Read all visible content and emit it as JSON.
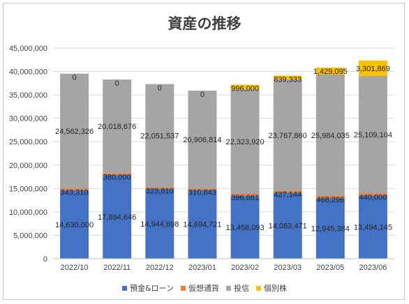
{
  "chart_data": {
    "type": "bar",
    "stacked": true,
    "title": "資産の推移",
    "xlabel": "",
    "ylabel": "",
    "ylim": [
      0,
      45000000
    ],
    "yticks": [
      0,
      5000000,
      10000000,
      15000000,
      20000000,
      25000000,
      30000000,
      35000000,
      40000000,
      45000000
    ],
    "ytick_labels": [
      "0",
      "5,000,000",
      "10,000,000",
      "15,000,000",
      "20,000,000",
      "25,000,000",
      "30,000,000",
      "35,000,000",
      "40,000,000",
      "45,000,000"
    ],
    "grid": true,
    "legend_position": "bottom",
    "categories": [
      "2022/10",
      "2022/11",
      "2022/12",
      "2023/01",
      "2023/02",
      "2023/03",
      "2023/05",
      "2023/06"
    ],
    "series": [
      {
        "name": "預金&ローン",
        "color": "#4472c4",
        "values": [
          14630000,
          17894646,
          14944698,
          14694721,
          13458093,
          14083471,
          12945384,
          13494145
        ],
        "labels": [
          "14,630,000",
          "17,894,646",
          "14,944,698",
          "14,694,721",
          "13,458,093",
          "14,083,471",
          "12,945,384",
          "13,494,145"
        ]
      },
      {
        "name": "仮想通貨",
        "color": "#ed7d31",
        "values": [
          343310,
          380000,
          323810,
          310843,
          396661,
          427144,
          468296,
          440000
        ],
        "labels": [
          "343,310",
          "380,000",
          "323,810",
          "310,843",
          "396,661",
          "427,144",
          "468,296",
          "440,000"
        ]
      },
      {
        "name": "投信",
        "color": "#a5a5a5",
        "values": [
          24562326,
          20018676,
          22051537,
          20906814,
          22323920,
          23767860,
          25984035,
          25109104
        ],
        "labels": [
          "24,562,326",
          "20,018,676",
          "22,051,537",
          "20,906,814",
          "22,323,920",
          "23,767,860",
          "25,984,035",
          "25,109,104"
        ]
      },
      {
        "name": "個別株",
        "color": "#ffc000",
        "values": [
          0,
          0,
          0,
          0,
          996000,
          839333,
          1429095,
          3301869
        ],
        "labels": [
          "0",
          "0",
          "0",
          "0",
          "996,000",
          "839,333",
          "1,429,095",
          "3,301,869"
        ]
      }
    ]
  }
}
